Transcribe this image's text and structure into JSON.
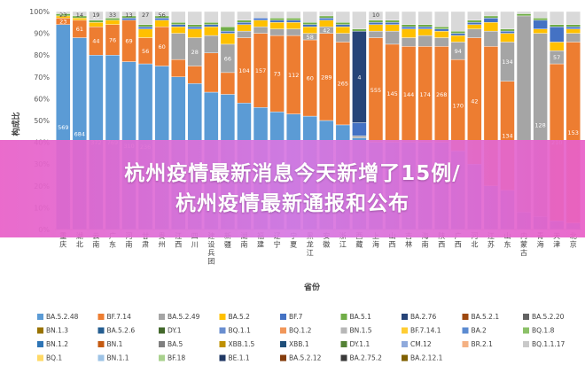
{
  "banner": {
    "line1": "杭州疫情最新消息今天新增了15例/",
    "line2": "杭州疫情最新通报和公布"
  },
  "chart_data": {
    "type": "bar",
    "stacked": "percent",
    "xlabel": "省份",
    "ylabel": "构成比",
    "ylim": [
      0,
      100
    ],
    "yticks": [
      "0%",
      "10%",
      "20%",
      "30%",
      "40%",
      "50%",
      "60%",
      "70%",
      "80%",
      "90%",
      "100%"
    ],
    "grid": false,
    "legend_position": "bottom",
    "categories": [
      "重庆",
      "湖北",
      "云南",
      "广东",
      "河南",
      "甘肃",
      "贵州",
      "江西",
      "四川",
      "建设兵团",
      "新疆",
      "湖南",
      "福建",
      "辽宁",
      "宁夏",
      "黑龙江",
      "安徽",
      "浙江",
      "西藏",
      "上海",
      "山西",
      "吉林",
      "海南",
      "陕西",
      "广西",
      "河北",
      "江苏",
      "山东",
      "内蒙古",
      "青海",
      "天津",
      "北京"
    ],
    "series_colors": {
      "BA.5.2.48": "#5b9bd5",
      "BF.7.14": "#ed7d31",
      "BA.5.2.49": "#a5a5a5",
      "BA.5.2": "#ffc000",
      "BF.7": "#4472c4",
      "BA.5.1": "#70ad47",
      "BA.2.76": "#264478",
      "BA.5.2.1": "#9e480e",
      "BA.5.2.20": "#636363",
      "other": "#d9d9d9"
    },
    "series": [
      {
        "name": "BA.5.2.48",
        "values": [
          94,
          88,
          80,
          80,
          77,
          76,
          75,
          70,
          67,
          63,
          62,
          58,
          56,
          54,
          53,
          52,
          50,
          48,
          42,
          40,
          40,
          40,
          40,
          40,
          36,
          30,
          20,
          18,
          8,
          6,
          4,
          3
        ],
        "labels": [
          "569",
          "684",
          "372",
          "769",
          "310",
          "236",
          "",
          "",
          "",
          "",
          "",
          "",
          "",
          "",
          "",
          "",
          "",
          "",
          "",
          "",
          "",
          "",
          "",
          "",
          "",
          "",
          "",
          "",
          "",
          "",
          "",
          ""
        ]
      },
      {
        "name": "BF.7.14",
        "values": [
          3,
          8,
          13,
          14,
          19,
          12,
          18,
          8,
          8,
          18,
          10,
          30,
          34,
          35,
          36,
          35,
          40,
          38,
          0,
          48,
          45,
          44,
          44,
          44,
          42,
          58,
          64,
          50,
          0,
          0,
          72,
          83
        ],
        "labels": [
          "23",
          "61",
          "44",
          "76",
          "69",
          "56",
          "60",
          "",
          "",
          "",
          "",
          "104",
          "157",
          "73",
          "112",
          "60",
          "289",
          "265",
          "23",
          "555",
          "145",
          "144",
          "174",
          "268",
          "170",
          "42",
          "",
          "134",
          "",
          "",
          "210",
          "153"
        ]
      },
      {
        "name": "BA.5.2.49",
        "values": [
          0,
          0,
          0,
          0,
          0,
          0,
          0,
          12,
          13,
          8,
          13,
          3,
          3,
          3,
          3,
          3,
          3,
          4,
          1,
          3,
          6,
          4,
          5,
          4,
          8,
          4,
          7,
          18,
          90,
          84,
          6,
          4
        ],
        "labels": [
          "",
          "",
          "",
          "",
          "",
          "",
          "",
          "",
          "28",
          "",
          "66",
          "",
          "",
          "",
          "",
          "58",
          "42",
          "",
          "",
          "",
          "",
          "",
          "",
          "",
          "94",
          "",
          "",
          "134",
          "",
          "128",
          "57",
          ""
        ]
      },
      {
        "name": "BA.5.2",
        "values": [
          1,
          1,
          2,
          2,
          0,
          4,
          3,
          3,
          4,
          4,
          5,
          3,
          3,
          3,
          3,
          3,
          3,
          3,
          0,
          3,
          3,
          4,
          3,
          3,
          3,
          2,
          4,
          4,
          0,
          2,
          4,
          2
        ],
        "labels": [
          "",
          "",
          "",
          "",
          "",
          "",
          "",
          "",
          "",
          "",
          "",
          "",
          "",
          "",
          "",
          "",
          "",
          "",
          "",
          "",
          "",
          "",
          "",
          "",
          "",
          "",
          "",
          "",
          "",
          "",
          "",
          ""
        ]
      },
      {
        "name": "BF.7",
        "values": [
          0,
          0,
          0,
          0,
          1,
          1,
          1,
          1,
          1,
          1,
          1,
          1,
          1,
          1,
          1,
          1,
          1,
          1,
          6,
          1,
          1,
          1,
          1,
          1,
          1,
          1,
          2,
          1,
          0,
          4,
          7,
          1
        ],
        "labels": [
          "",
          "",
          "",
          "",
          "",
          "",
          "",
          "",
          "",
          "",
          "",
          "",
          "",
          "",
          "",
          "",
          "",
          "",
          "",
          "",
          "",
          "",
          "",
          "",
          "",
          "",
          "",
          "",
          "",
          "",
          "",
          ""
        ]
      },
      {
        "name": "BA.2.76",
        "values": [
          0,
          0,
          0,
          0,
          0,
          0,
          0,
          0,
          0,
          0,
          0,
          0,
          0,
          0,
          0,
          0,
          0,
          0,
          42,
          0,
          0,
          0,
          0,
          0,
          0,
          0,
          0,
          0,
          0,
          0,
          0,
          0
        ],
        "labels": [
          "",
          "",
          "",
          "",
          "",
          "",
          "",
          "",
          "",
          "",
          "",
          "",
          "",
          "",
          "",
          "",
          "",
          "",
          "4",
          "",
          "",
          "",
          "",
          "",
          "",
          "",
          "",
          "",
          "",
          "",
          "",
          ""
        ]
      },
      {
        "name": "BA.5.1",
        "values": [
          1,
          1,
          1,
          1,
          1,
          1,
          1,
          1,
          1,
          1,
          2,
          1,
          0,
          1,
          1,
          1,
          1,
          1,
          1,
          1,
          1,
          1,
          1,
          1,
          1,
          1,
          1,
          1,
          1,
          1,
          1,
          1
        ],
        "labels": [
          "",
          "",
          "",
          "",
          "",
          "",
          "",
          "",
          "",
          "",
          "",
          "",
          "",
          "",
          "",
          "",
          "",
          "",
          "",
          "",
          "",
          "",
          "",
          "",
          "",
          "",
          "",
          "",
          "",
          "",
          "",
          ""
        ]
      },
      {
        "name": "other",
        "values": [
          1,
          2,
          4,
          3,
          2,
          6,
          2,
          5,
          6,
          5,
          7,
          4,
          3,
          3,
          3,
          5,
          2,
          5,
          8,
          4,
          4,
          6,
          6,
          7,
          9,
          4,
          2,
          8,
          1,
          3,
          6,
          6
        ],
        "labels": [
          "23",
          "14",
          "19",
          "33",
          "13",
          "",
          "56",
          "",
          "",
          "",
          "",
          "",
          "",
          "",
          "",
          "",
          "",
          "",
          "",
          "",
          "",
          "",
          "",
          "",
          "",
          "",
          "",
          "",
          "",
          "",
          "",
          ""
        ]
      }
    ],
    "top_labels": [
      "23",
      "14",
      "19",
      "33",
      "13",
      "27",
      "56",
      "",
      "",
      "",
      "",
      "",
      "",
      "",
      "",
      "",
      "",
      "",
      "",
      "10",
      "",
      "",
      "",
      "",
      "",
      "",
      "",
      "",
      "",
      "",
      "",
      ""
    ],
    "legend": [
      "BA.5.2.48",
      "BF.7.14",
      "BA.5.2.49",
      "BA.5.2",
      "BF.7",
      "BA.5.1",
      "BA.2.76",
      "BA.5.2.1",
      "BA.5.2.20",
      "BN.1.3",
      "BA.5.2.6",
      "DY.1",
      "BQ.1.1",
      "BQ.1.2",
      "BN.1.5",
      "BF.7.14.1",
      "BA.2",
      "BQ.1.8",
      "BN.1.2",
      "BN.1",
      "BA.5",
      "XBB.1.5",
      "XBB.1",
      "DY.1.1",
      "CM.12",
      "BR.2.1",
      "BQ.1.1.17",
      "BQ.1",
      "BN.1.1",
      "BF.18",
      "BE.1.1",
      "BA.5.2.12",
      "BA.2.75.2",
      "BA.2.12.1"
    ],
    "legend_colors": [
      "#5b9bd5",
      "#ed7d31",
      "#a5a5a5",
      "#ffc000",
      "#4472c4",
      "#70ad47",
      "#264478",
      "#9e480e",
      "#636363",
      "#997300",
      "#255e91",
      "#43682b",
      "#698ed0",
      "#f1975a",
      "#b7b7b7",
      "#ffcd33",
      "#5c8bd1",
      "#8cc168",
      "#2e75b6",
      "#c55a11",
      "#7f7f7f",
      "#bf9000",
      "#1f4e79",
      "#548235",
      "#8faadc",
      "#f4b183",
      "#c9c9c9",
      "#ffd966",
      "#9dc3e6",
      "#a9d18e",
      "#203864",
      "#843c0c",
      "#3a3a3a",
      "#7f6000"
    ]
  }
}
